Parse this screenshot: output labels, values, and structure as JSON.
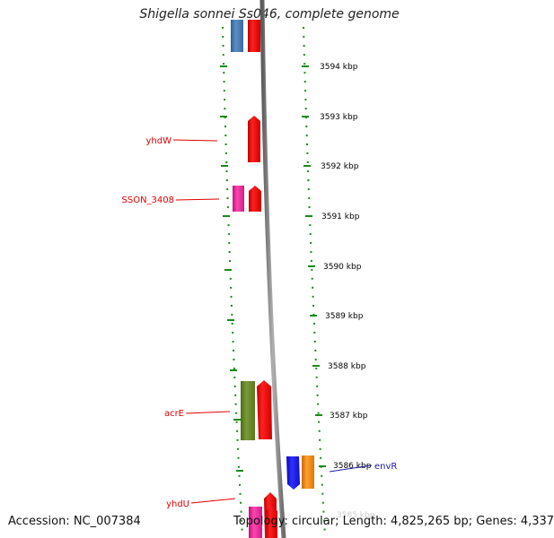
{
  "title": "Shigella sonnei Ss046, complete genome",
  "accession": "Accession: NC_007384",
  "summary": "Topology: circular; Length: 4,825,265 bp; Genes: 4,337",
  "ticks": [
    "3594 kbp",
    "3593 kbp",
    "3592 kbp",
    "3591 kbp",
    "3590 kbp",
    "3589 kbp",
    "3588 kbp",
    "3587 kbp",
    "3586 kbp",
    "3585 kbp"
  ],
  "gene_labels": [
    {
      "name": "yhdW",
      "side": "left"
    },
    {
      "name": "SSON_3408",
      "side": "left"
    },
    {
      "name": "acrE",
      "side": "left"
    },
    {
      "name": "yhdU",
      "side": "left"
    },
    {
      "name": "envR",
      "side": "right"
    }
  ],
  "colors": {
    "track_dots": "#1a8a1a",
    "backbone": "#8c8c8c",
    "left_label": "#e00000",
    "right_label": "#1a1aa0",
    "red_gene": "#ee1111",
    "blue_gene": "#4a7fb5",
    "pink_gene": "#ee2ea0",
    "green_gene": "#6b8a2a",
    "bright_blue_gene": "#1a1aee",
    "orange_gene": "#f08a10"
  }
}
